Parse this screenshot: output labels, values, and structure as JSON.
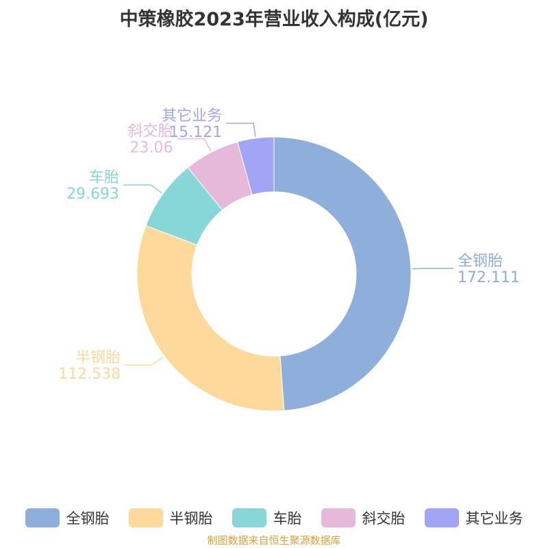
{
  "title": "中策橡胶2023年营业收入构成(亿元)",
  "source": "制图数据来自恒生聚源数据库",
  "chart_data": {
    "type": "pie",
    "donut": true,
    "title": "中策橡胶2023年营业收入构成(亿元)",
    "legend_position": "bottom",
    "slices": [
      {
        "name": "全钢胎",
        "value": 172.111,
        "value_label": "172.111",
        "color": "#8eaedb"
      },
      {
        "name": "半钢胎",
        "value": 112.538,
        "value_label": "112.538",
        "color": "#fed99b"
      },
      {
        "name": "车胎",
        "value": 29.693,
        "value_label": "29.693",
        "color": "#87d6d8"
      },
      {
        "name": "斜交胎",
        "value": 23.06,
        "value_label": "23.06",
        "color": "#e6b9da"
      },
      {
        "name": "其它业务",
        "value": 15.121,
        "value_label": "15.121",
        "color": "#a2a4f5"
      }
    ]
  }
}
